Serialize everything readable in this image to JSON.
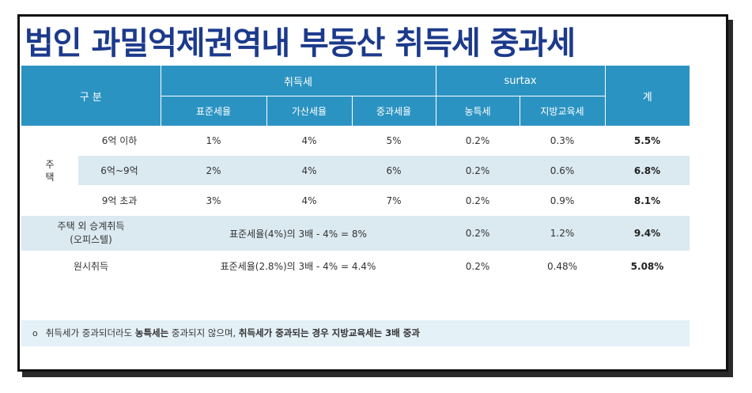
{
  "title": "법인 과밀억제권역내 부동산  취득세 중과세",
  "table": {
    "header": {
      "category": "구 분",
      "acq_tax": "취득세",
      "surtax": "surtax",
      "total": "계",
      "sub": [
        "표준세율",
        "가산세율",
        "중과세율",
        "농특세",
        "지방교육세"
      ]
    },
    "housing_group_label": "주\n택",
    "rows": [
      {
        "label": "6억 이하",
        "values": [
          "1%",
          "4%",
          "5%",
          "0.2%",
          "0.3%"
        ],
        "total": "5.5%"
      },
      {
        "label": "6억~9억",
        "values": [
          "2%",
          "4%",
          "6%",
          "0.2%",
          "0.6%"
        ],
        "total": "6.8%"
      },
      {
        "label": "9억 초과",
        "values": [
          "3%",
          "4%",
          "7%",
          "0.2%",
          "0.9%"
        ],
        "total": "8.1%"
      }
    ],
    "row_nonhousing": {
      "label_line1": "주택 외 승계취득",
      "label_line2": "(오피스텔)",
      "formula": "표준세율(4%)의 3배 - 4% = 8%",
      "rural": "0.2%",
      "edu": "1.2%",
      "total": "9.4%"
    },
    "row_original": {
      "label": "원시취득",
      "formula": "표준세율(2.8%)의 3배 - 4% = 4.4%",
      "rural": "0.2%",
      "edu": "0.48%",
      "total": "5.08%"
    }
  },
  "note": {
    "bullet": "o",
    "part1": "취득세가 중과되더라도 ",
    "part2": "농특세는",
    "part3": " 중과되지 않으며, ",
    "part4": "취득세가 중과되는 경우 지방교육세는 3배 중과"
  },
  "colors": {
    "title": "#1c3a8c",
    "header_bg": "#2b93c2",
    "row_alt": "#dbe9f1",
    "note_bg": "#e4f1f7"
  }
}
